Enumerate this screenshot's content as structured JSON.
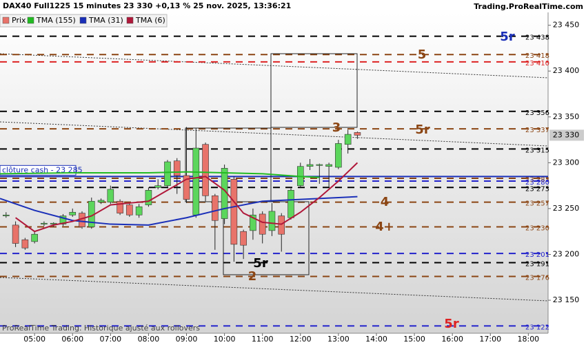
{
  "chart_data": {
    "type": "candlestick",
    "title": "DAX40 Full1225 15 minutes 23 330 +0,13 % 25 nov. 2025, 13:36:21",
    "source": "Trading.ProRealTime.com",
    "footer": "ProRealTime Trading. Historique ajusté aux rollovers",
    "xlim": [
      4.09,
      18.52
    ],
    "xticks": [
      {
        "value": 5,
        "label": "05:00"
      },
      {
        "value": 6,
        "label": "06:00"
      },
      {
        "value": 7,
        "label": "07:00"
      },
      {
        "value": 8,
        "label": "08:00"
      },
      {
        "value": 9,
        "label": "09:00"
      },
      {
        "value": 10,
        "label": "10:00"
      },
      {
        "value": 11,
        "label": "11:00"
      },
      {
        "value": 12,
        "label": "12:00"
      },
      {
        "value": 13,
        "label": "13:00"
      },
      {
        "value": 14,
        "label": "14:00"
      },
      {
        "value": 15,
        "label": "15:00"
      },
      {
        "value": 16,
        "label": "16:00"
      },
      {
        "value": 17,
        "label": "17:00"
      },
      {
        "value": 18,
        "label": "18:00"
      }
    ],
    "ylim": [
      23114,
      23464
    ],
    "yticks": [
      {
        "value": 23150,
        "label": "23 150"
      },
      {
        "value": 23200,
        "label": "23 200"
      },
      {
        "value": 23250,
        "label": "23 250"
      },
      {
        "value": 23300,
        "label": "23 300"
      },
      {
        "value": 23350,
        "label": "23 350"
      },
      {
        "value": 23400,
        "label": "23 400"
      },
      {
        "value": 23450,
        "label": "23 450"
      }
    ],
    "candles": {
      "name": "Prix",
      "up_color": "#5cd65c",
      "down_color": "#e8736a",
      "x": [
        4.25,
        4.5,
        4.75,
        5,
        5.25,
        5.5,
        5.75,
        6,
        6.25,
        6.5,
        6.75,
        7,
        7.25,
        7.5,
        7.75,
        8,
        8.25,
        8.5,
        8.75,
        9,
        9.25,
        9.5,
        9.75,
        10,
        10.25,
        10.5,
        10.75,
        11,
        11.25,
        11.5,
        11.75,
        12,
        12.25,
        12.5,
        12.75,
        13,
        13.25,
        13.5
      ],
      "open": [
        23242,
        23232,
        23216,
        23214,
        23233,
        23233,
        23233,
        23243,
        23245,
        23230,
        23257,
        23257,
        23258,
        23254,
        23243,
        23254,
        23273,
        23275,
        23302,
        23286,
        23243,
        23320,
        23264,
        23239,
        23282,
        23225,
        23226,
        23244,
        23226,
        23242,
        23240,
        23275,
        23296,
        23297,
        23296,
        23295,
        23320,
        23333
      ],
      "high": [
        23246,
        23236,
        23218,
        23225,
        23236,
        23235,
        23244,
        23250,
        23247,
        23262,
        23261,
        23275,
        23260,
        23256,
        23255,
        23273,
        23282,
        23303,
        23305,
        23339,
        23338,
        23322,
        23266,
        23298,
        23285,
        23227,
        23250,
        23247,
        23256,
        23245,
        23272,
        23300,
        23304,
        23299,
        23300,
        23325,
        23336,
        23334
      ],
      "low": [
        23240,
        23208,
        23205,
        23212,
        23231,
        23230,
        23231,
        23241,
        23228,
        23228,
        23255,
        23255,
        23243,
        23241,
        23240,
        23252,
        23271,
        23272,
        23266,
        23256,
        23240,
        23258,
        23205,
        23233,
        23192,
        23195,
        23216,
        23212,
        23220,
        23203,
        23238,
        23273,
        23292,
        23277,
        23273,
        23293,
        23310,
        23326
      ],
      "close": [
        23243,
        23212,
        23207,
        23222,
        23234,
        23234,
        23242,
        23246,
        23230,
        23258,
        23259,
        23271,
        23245,
        23243,
        23252,
        23270,
        23275,
        23301,
        23286,
        23260,
        23316,
        23264,
        23237,
        23294,
        23211,
        23210,
        23243,
        23222,
        23247,
        23222,
        23270,
        23296,
        23298,
        23298,
        23298,
        23321,
        23331,
        23330
      ]
    },
    "series": [
      {
        "name": "TMA (155)",
        "color": "#22bb22",
        "x": [
          4.09,
          6,
          8,
          9,
          10,
          11,
          12,
          12.5
        ],
        "values": [
          23288,
          23289,
          23289,
          23290,
          23289,
          23288,
          23285,
          23284
        ]
      },
      {
        "name": "TMA (31)",
        "color": "#1a2fb8",
        "x": [
          4.09,
          5,
          6,
          7,
          8,
          9,
          10,
          11,
          12,
          13,
          13.5
        ],
        "values": [
          23261,
          23248,
          23237,
          23233,
          23232,
          23240,
          23250,
          23258,
          23260,
          23262,
          23263
        ]
      },
      {
        "name": "TMA (6)",
        "color": "#b0183a",
        "x": [
          4.5,
          5,
          5.5,
          6,
          6.5,
          7,
          7.5,
          8,
          8.5,
          9,
          9.5,
          10,
          10.5,
          11,
          11.5,
          12,
          12.5,
          13,
          13.5
        ],
        "values": [
          23240,
          23225,
          23232,
          23236,
          23242,
          23254,
          23256,
          23258,
          23270,
          23282,
          23285,
          23270,
          23245,
          23235,
          23233,
          23246,
          23262,
          23280,
          23300
        ]
      }
    ],
    "levels": [
      {
        "value": 23438,
        "label": "23 438",
        "color": "#000000"
      },
      {
        "value": 23418,
        "label": "23 418",
        "color": "#8b4513"
      },
      {
        "value": 23410,
        "label": "23 410",
        "color": "#dd2222"
      },
      {
        "value": 23356,
        "label": "23 356",
        "color": "#000000"
      },
      {
        "value": 23337,
        "label": "23 337",
        "color": "#8b4513"
      },
      {
        "value": 23315,
        "label": "23 315",
        "color": "#000000"
      },
      {
        "value": 23283,
        "label": "23 283",
        "color": "#8b4513"
      },
      {
        "value": 23280,
        "label": "23 280",
        "color": "#2222cc"
      },
      {
        "value": 23273,
        "label": "23 273",
        "color": "#000000"
      },
      {
        "value": 23257,
        "label": "23 257",
        "color": "#8b4513"
      },
      {
        "value": 23230,
        "label": "23 230",
        "color": "#8b4513"
      },
      {
        "value": 23201,
        "label": "23 201",
        "color": "#2222cc"
      },
      {
        "value": 23191,
        "label": "23 191",
        "color": "#000000"
      },
      {
        "value": 23176,
        "label": "23 176",
        "color": "#8b4513"
      },
      {
        "value": 23122,
        "label": "23 122",
        "color": "#2222cc"
      }
    ],
    "cash_close": {
      "value": 23285,
      "label": "clôture cash -  23 285",
      "color": "#1a2fb8"
    },
    "last_price": {
      "value": 23330,
      "label": "23 330"
    },
    "annotations": [
      {
        "text": "5r",
        "color": "#1a2fb8"
      },
      {
        "text": "5",
        "color": "#8b4513"
      },
      {
        "text": "3",
        "color": "#8b4513"
      },
      {
        "text": "5r",
        "color": "#8b4513"
      },
      {
        "text": "4",
        "color": "#8b4513"
      },
      {
        "text": "4+",
        "color": "#8b4513"
      },
      {
        "text": "5r",
        "color": "#000000"
      },
      {
        "text": "2",
        "color": "#8b4513"
      },
      {
        "text": "5r",
        "color": "#dd2222"
      }
    ]
  }
}
